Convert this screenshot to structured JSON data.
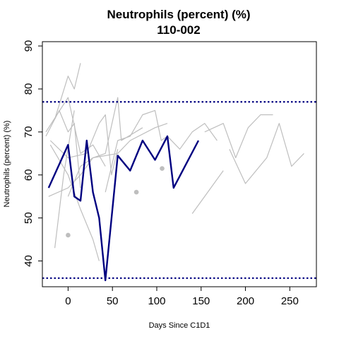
{
  "chart_data": {
    "type": "line",
    "title": "Neutrophils (percent) (%)",
    "subtitle": "110-002",
    "xlabel": "Days Since C1D1",
    "ylabel": "Neutrophils (percent) (%)",
    "xlim": [
      -29,
      280
    ],
    "ylim": [
      34,
      91
    ],
    "x_ticks": [
      0,
      50,
      100,
      150,
      200,
      250
    ],
    "y_ticks": [
      40,
      50,
      60,
      70,
      80,
      90
    ],
    "grid": false,
    "legend": "none",
    "reference_lines": [
      {
        "y": 77,
        "style": "dotted",
        "color": "#000080"
      },
      {
        "y": 36,
        "style": "dotted",
        "color": "#000080"
      }
    ],
    "highlight_series": {
      "name": "110-002",
      "color": "#000080",
      "points": [
        {
          "x": -22,
          "y": 57
        },
        {
          "x": 0,
          "y": 67
        },
        {
          "x": 7,
          "y": 55
        },
        {
          "x": 14,
          "y": 54
        },
        {
          "x": 21,
          "y": 68
        },
        {
          "x": 28,
          "y": 56
        },
        {
          "x": 35,
          "y": 50
        },
        {
          "x": 42,
          "y": 35.5
        },
        {
          "x": 56,
          "y": 64.5
        },
        {
          "x": 70,
          "y": 61
        },
        {
          "x": 84,
          "y": 68
        },
        {
          "x": 98,
          "y": 63.5
        },
        {
          "x": 112,
          "y": 69
        },
        {
          "x": 119,
          "y": 57
        },
        {
          "x": 147,
          "y": 68
        }
      ]
    },
    "background_series": [
      {
        "points": [
          {
            "x": -25,
            "y": 70
          },
          {
            "x": 0,
            "y": 78
          },
          {
            "x": 14,
            "y": 65
          },
          {
            "x": 28,
            "y": 67
          },
          {
            "x": 42,
            "y": 62
          }
        ]
      },
      {
        "points": [
          {
            "x": -15,
            "y": 73
          },
          {
            "x": 0,
            "y": 83
          },
          {
            "x": 7,
            "y": 80
          },
          {
            "x": 14,
            "y": 86
          }
        ]
      },
      {
        "points": [
          {
            "x": -20,
            "y": 67
          },
          {
            "x": 0,
            "y": 60
          },
          {
            "x": 14,
            "y": 52
          },
          {
            "x": 28,
            "y": 45
          },
          {
            "x": 35,
            "y": 40
          }
        ]
      },
      {
        "points": [
          {
            "x": -25,
            "y": 69
          },
          {
            "x": -10,
            "y": 75
          },
          {
            "x": 0,
            "y": 70
          },
          {
            "x": 7,
            "y": 72
          },
          {
            "x": 14,
            "y": 57
          }
        ]
      },
      {
        "points": [
          {
            "x": -22,
            "y": 55
          },
          {
            "x": 0,
            "y": 57
          },
          {
            "x": 14,
            "y": 60
          },
          {
            "x": 28,
            "y": 64
          },
          {
            "x": 42,
            "y": 65
          },
          {
            "x": 56,
            "y": 78
          },
          {
            "x": 60,
            "y": 68
          },
          {
            "x": 84,
            "y": 71
          }
        ]
      },
      {
        "points": [
          {
            "x": -20,
            "y": 68
          },
          {
            "x": 0,
            "y": 64
          },
          {
            "x": 21,
            "y": 65
          },
          {
            "x": 35,
            "y": 72
          },
          {
            "x": 42,
            "y": 74
          },
          {
            "x": 49,
            "y": 60
          },
          {
            "x": 56,
            "y": 66
          }
        ]
      },
      {
        "points": [
          {
            "x": -15,
            "y": 43
          },
          {
            "x": -5,
            "y": 60
          },
          {
            "x": 7,
            "y": 75
          }
        ]
      },
      {
        "points": [
          {
            "x": 0,
            "y": 55
          },
          {
            "x": 14,
            "y": 62
          },
          {
            "x": 28,
            "y": 64
          },
          {
            "x": 56,
            "y": 65
          },
          {
            "x": 70,
            "y": 68
          },
          {
            "x": 98,
            "y": 71
          },
          {
            "x": 112,
            "y": 72
          }
        ]
      },
      {
        "points": [
          {
            "x": 42,
            "y": 56
          },
          {
            "x": 56,
            "y": 68
          },
          {
            "x": 70,
            "y": 69
          },
          {
            "x": 84,
            "y": 74
          },
          {
            "x": 98,
            "y": 75
          },
          {
            "x": 105,
            "y": 68
          },
          {
            "x": 112,
            "y": 69
          },
          {
            "x": 126,
            "y": 66
          },
          {
            "x": 140,
            "y": 70
          },
          {
            "x": 154,
            "y": 72
          },
          {
            "x": 168,
            "y": 68
          }
        ]
      },
      {
        "points": [
          {
            "x": 140,
            "y": 51
          },
          {
            "x": 175,
            "y": 61
          }
        ]
      },
      {
        "points": [
          {
            "x": 154,
            "y": 70
          },
          {
            "x": 175,
            "y": 72
          },
          {
            "x": 189,
            "y": 64
          },
          {
            "x": 203,
            "y": 71
          },
          {
            "x": 217,
            "y": 74
          },
          {
            "x": 231,
            "y": 74
          }
        ]
      },
      {
        "points": [
          {
            "x": 182,
            "y": 66
          },
          {
            "x": 200,
            "y": 58
          },
          {
            "x": 224,
            "y": 64
          },
          {
            "x": 238,
            "y": 72
          },
          {
            "x": 252,
            "y": 62
          },
          {
            "x": 266,
            "y": 65
          }
        ]
      }
    ],
    "background_points": [
      {
        "x": 0,
        "y": 46
      },
      {
        "x": 77,
        "y": 56
      },
      {
        "x": 106,
        "y": 61.5
      }
    ],
    "colors": {
      "highlight": "#000080",
      "background": "#bebebe",
      "reference": "#000080"
    }
  }
}
